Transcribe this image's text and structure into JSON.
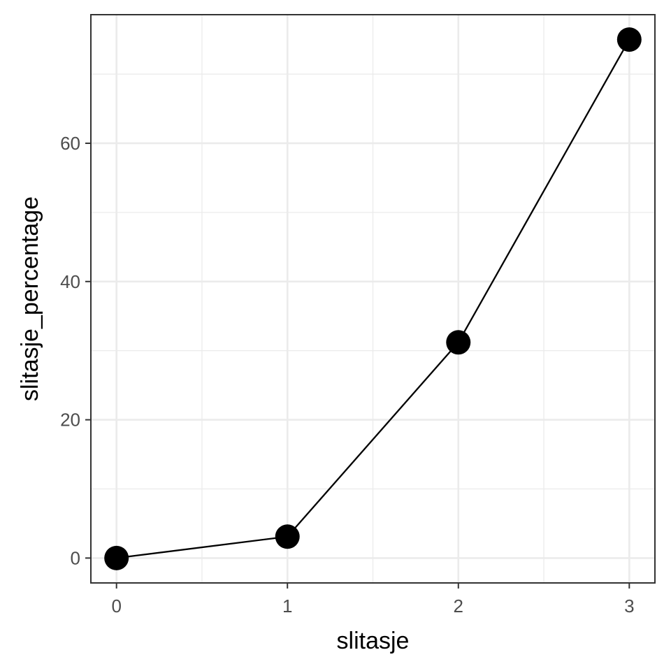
{
  "chart_data": {
    "type": "line",
    "title": "",
    "xlabel": "slitasje",
    "ylabel": "slitasje_percentage",
    "x": [
      0,
      1,
      2,
      3
    ],
    "series": [
      {
        "values": [
          0,
          3.1,
          31.2,
          75.0
        ]
      }
    ],
    "xlim": [
      -0.15,
      3.15
    ],
    "ylim": [
      -3.6,
      78.6
    ],
    "x_ticks": [
      0,
      1,
      2,
      3
    ],
    "x_tick_labels": [
      "0",
      "1",
      "2",
      "3"
    ],
    "y_ticks": [
      0,
      20,
      40,
      60
    ],
    "y_tick_labels": [
      "0",
      "20",
      "40",
      "60"
    ],
    "x_minor_ticks": [
      0.5,
      1.5,
      2.5
    ],
    "y_minor_ticks": [
      10,
      30,
      50,
      70
    ],
    "grid": true,
    "legend": "none",
    "colors": {
      "line": "#000000",
      "points": "#000000",
      "grid": "#ebebeb",
      "panel_border": "#333333",
      "tick_text": "#4d4d4d"
    }
  }
}
